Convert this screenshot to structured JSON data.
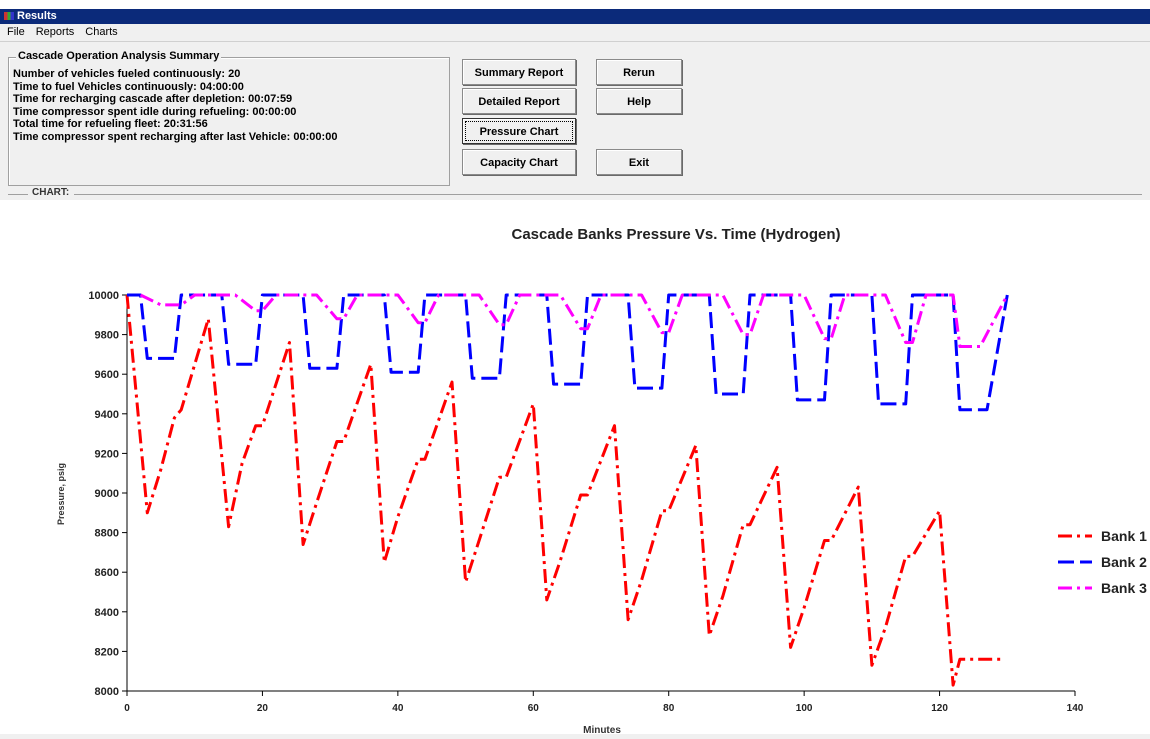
{
  "window": {
    "title": "Results"
  },
  "menu": [
    "File",
    "Reports",
    "Charts"
  ],
  "summary": {
    "legend": "Cascade Operation Analysis Summary",
    "lines": [
      "Number of vehicles fueled continuously: 20",
      "Time to fuel Vehicles continuously: 04:00:00",
      "Time for recharging cascade after depletion: 00:07:59",
      "Time compressor spent idle during refueling: 00:00:00",
      "Total time for refueling fleet: 20:31:56",
      "Time compressor spent recharging after last Vehicle: 00:00:00"
    ]
  },
  "buttons": {
    "summary_report": "Summary Report",
    "detailed_report": "Detailed Report",
    "pressure_chart": "Pressure Chart",
    "capacity_chart": "Capacity Chart",
    "rerun": "Rerun",
    "help": "Help",
    "exit": "Exit"
  },
  "chart_section_label": "CHART:",
  "chart_data": {
    "type": "line",
    "title": "Cascade Banks Pressure Vs. Time (Hydrogen)",
    "xlabel": "Minutes",
    "ylabel": "Pressure, psig",
    "xlim": [
      0,
      140
    ],
    "ylim": [
      8000,
      10000
    ],
    "xticks": [
      0,
      20,
      40,
      60,
      80,
      100,
      120,
      140
    ],
    "yticks": [
      8000,
      8200,
      8400,
      8600,
      8800,
      9000,
      9200,
      9400,
      9600,
      9800,
      10000
    ],
    "grid": false,
    "legend_position": "right",
    "series": [
      {
        "name": "Bank 1",
        "color": "#ff0000",
        "dash": "dash-dot",
        "points": [
          [
            0,
            10000
          ],
          [
            3,
            8900
          ],
          [
            5,
            9120
          ],
          [
            7,
            9380
          ],
          [
            8,
            9420
          ],
          [
            12,
            9880
          ],
          [
            15,
            8830
          ],
          [
            17,
            9150
          ],
          [
            19,
            9340
          ],
          [
            20,
            9340
          ],
          [
            24,
            9760
          ],
          [
            26,
            8740
          ],
          [
            28,
            8950
          ],
          [
            31,
            9260
          ],
          [
            32,
            9260
          ],
          [
            36,
            9650
          ],
          [
            38,
            8650
          ],
          [
            40,
            8880
          ],
          [
            43,
            9170
          ],
          [
            44,
            9170
          ],
          [
            48,
            9560
          ],
          [
            50,
            8550
          ],
          [
            52,
            8760
          ],
          [
            55,
            9080
          ],
          [
            56,
            9080
          ],
          [
            60,
            9450
          ],
          [
            62,
            8460
          ],
          [
            64,
            8660
          ],
          [
            67,
            8990
          ],
          [
            68,
            8990
          ],
          [
            72,
            9340
          ],
          [
            74,
            8360
          ],
          [
            76,
            8560
          ],
          [
            79,
            8910
          ],
          [
            80,
            8910
          ],
          [
            84,
            9240
          ],
          [
            86,
            8280
          ],
          [
            88,
            8480
          ],
          [
            91,
            8840
          ],
          [
            92,
            8840
          ],
          [
            96,
            9130
          ],
          [
            98,
            8220
          ],
          [
            100,
            8420
          ],
          [
            103,
            8760
          ],
          [
            104,
            8760
          ],
          [
            108,
            9030
          ],
          [
            110,
            8130
          ],
          [
            112,
            8320
          ],
          [
            115,
            8680
          ],
          [
            116,
            8680
          ],
          [
            120,
            8910
          ],
          [
            122,
            8030
          ],
          [
            123,
            8160
          ],
          [
            125,
            8160
          ],
          [
            129,
            8160
          ]
        ]
      },
      {
        "name": "Bank 2",
        "color": "#0000ff",
        "dash": "dash",
        "points": [
          [
            0,
            10000
          ],
          [
            2,
            10000
          ],
          [
            3,
            9680
          ],
          [
            7,
            9680
          ],
          [
            8,
            10000
          ],
          [
            14,
            10000
          ],
          [
            15,
            9650
          ],
          [
            19,
            9650
          ],
          [
            20,
            10000
          ],
          [
            26,
            10000
          ],
          [
            27,
            9630
          ],
          [
            31,
            9630
          ],
          [
            32,
            10000
          ],
          [
            38,
            10000
          ],
          [
            39,
            9610
          ],
          [
            43,
            9610
          ],
          [
            44,
            10000
          ],
          [
            50,
            10000
          ],
          [
            51,
            9580
          ],
          [
            55,
            9580
          ],
          [
            56,
            10000
          ],
          [
            62,
            10000
          ],
          [
            63,
            9550
          ],
          [
            67,
            9550
          ],
          [
            68,
            10000
          ],
          [
            74,
            10000
          ],
          [
            75,
            9530
          ],
          [
            79,
            9530
          ],
          [
            80,
            10000
          ],
          [
            86,
            10000
          ],
          [
            87,
            9500
          ],
          [
            91,
            9500
          ],
          [
            92,
            10000
          ],
          [
            98,
            10000
          ],
          [
            99,
            9470
          ],
          [
            103,
            9470
          ],
          [
            104,
            10000
          ],
          [
            110,
            10000
          ],
          [
            111,
            9450
          ],
          [
            115,
            9450
          ],
          [
            116,
            10000
          ],
          [
            122,
            10000
          ],
          [
            123,
            9420
          ],
          [
            127,
            9420
          ],
          [
            130,
            10000
          ]
        ]
      },
      {
        "name": "Bank 3",
        "color": "#ff00ff",
        "dash": "dash-dot",
        "points": [
          [
            2,
            10000
          ],
          [
            5,
            9950
          ],
          [
            8,
            9950
          ],
          [
            10,
            10000
          ],
          [
            16,
            10000
          ],
          [
            19,
            9920
          ],
          [
            20,
            9920
          ],
          [
            22,
            10000
          ],
          [
            28,
            10000
          ],
          [
            31,
            9880
          ],
          [
            32,
            9880
          ],
          [
            34,
            10000
          ],
          [
            40,
            10000
          ],
          [
            43,
            9860
          ],
          [
            44,
            9860
          ],
          [
            46,
            10000
          ],
          [
            52,
            10000
          ],
          [
            55,
            9850
          ],
          [
            56,
            9850
          ],
          [
            58,
            10000
          ],
          [
            64,
            10000
          ],
          [
            67,
            9830
          ],
          [
            68,
            9830
          ],
          [
            70,
            10000
          ],
          [
            76,
            10000
          ],
          [
            79,
            9810
          ],
          [
            80,
            9810
          ],
          [
            82,
            10000
          ],
          [
            88,
            10000
          ],
          [
            91,
            9800
          ],
          [
            92,
            9800
          ],
          [
            94,
            10000
          ],
          [
            100,
            10000
          ],
          [
            103,
            9780
          ],
          [
            104,
            9780
          ],
          [
            106,
            10000
          ],
          [
            112,
            10000
          ],
          [
            115,
            9760
          ],
          [
            116,
            9760
          ],
          [
            118,
            10000
          ],
          [
            122,
            10000
          ],
          [
            123,
            9740
          ],
          [
            126,
            9740
          ],
          [
            130,
            10000
          ]
        ]
      }
    ]
  }
}
